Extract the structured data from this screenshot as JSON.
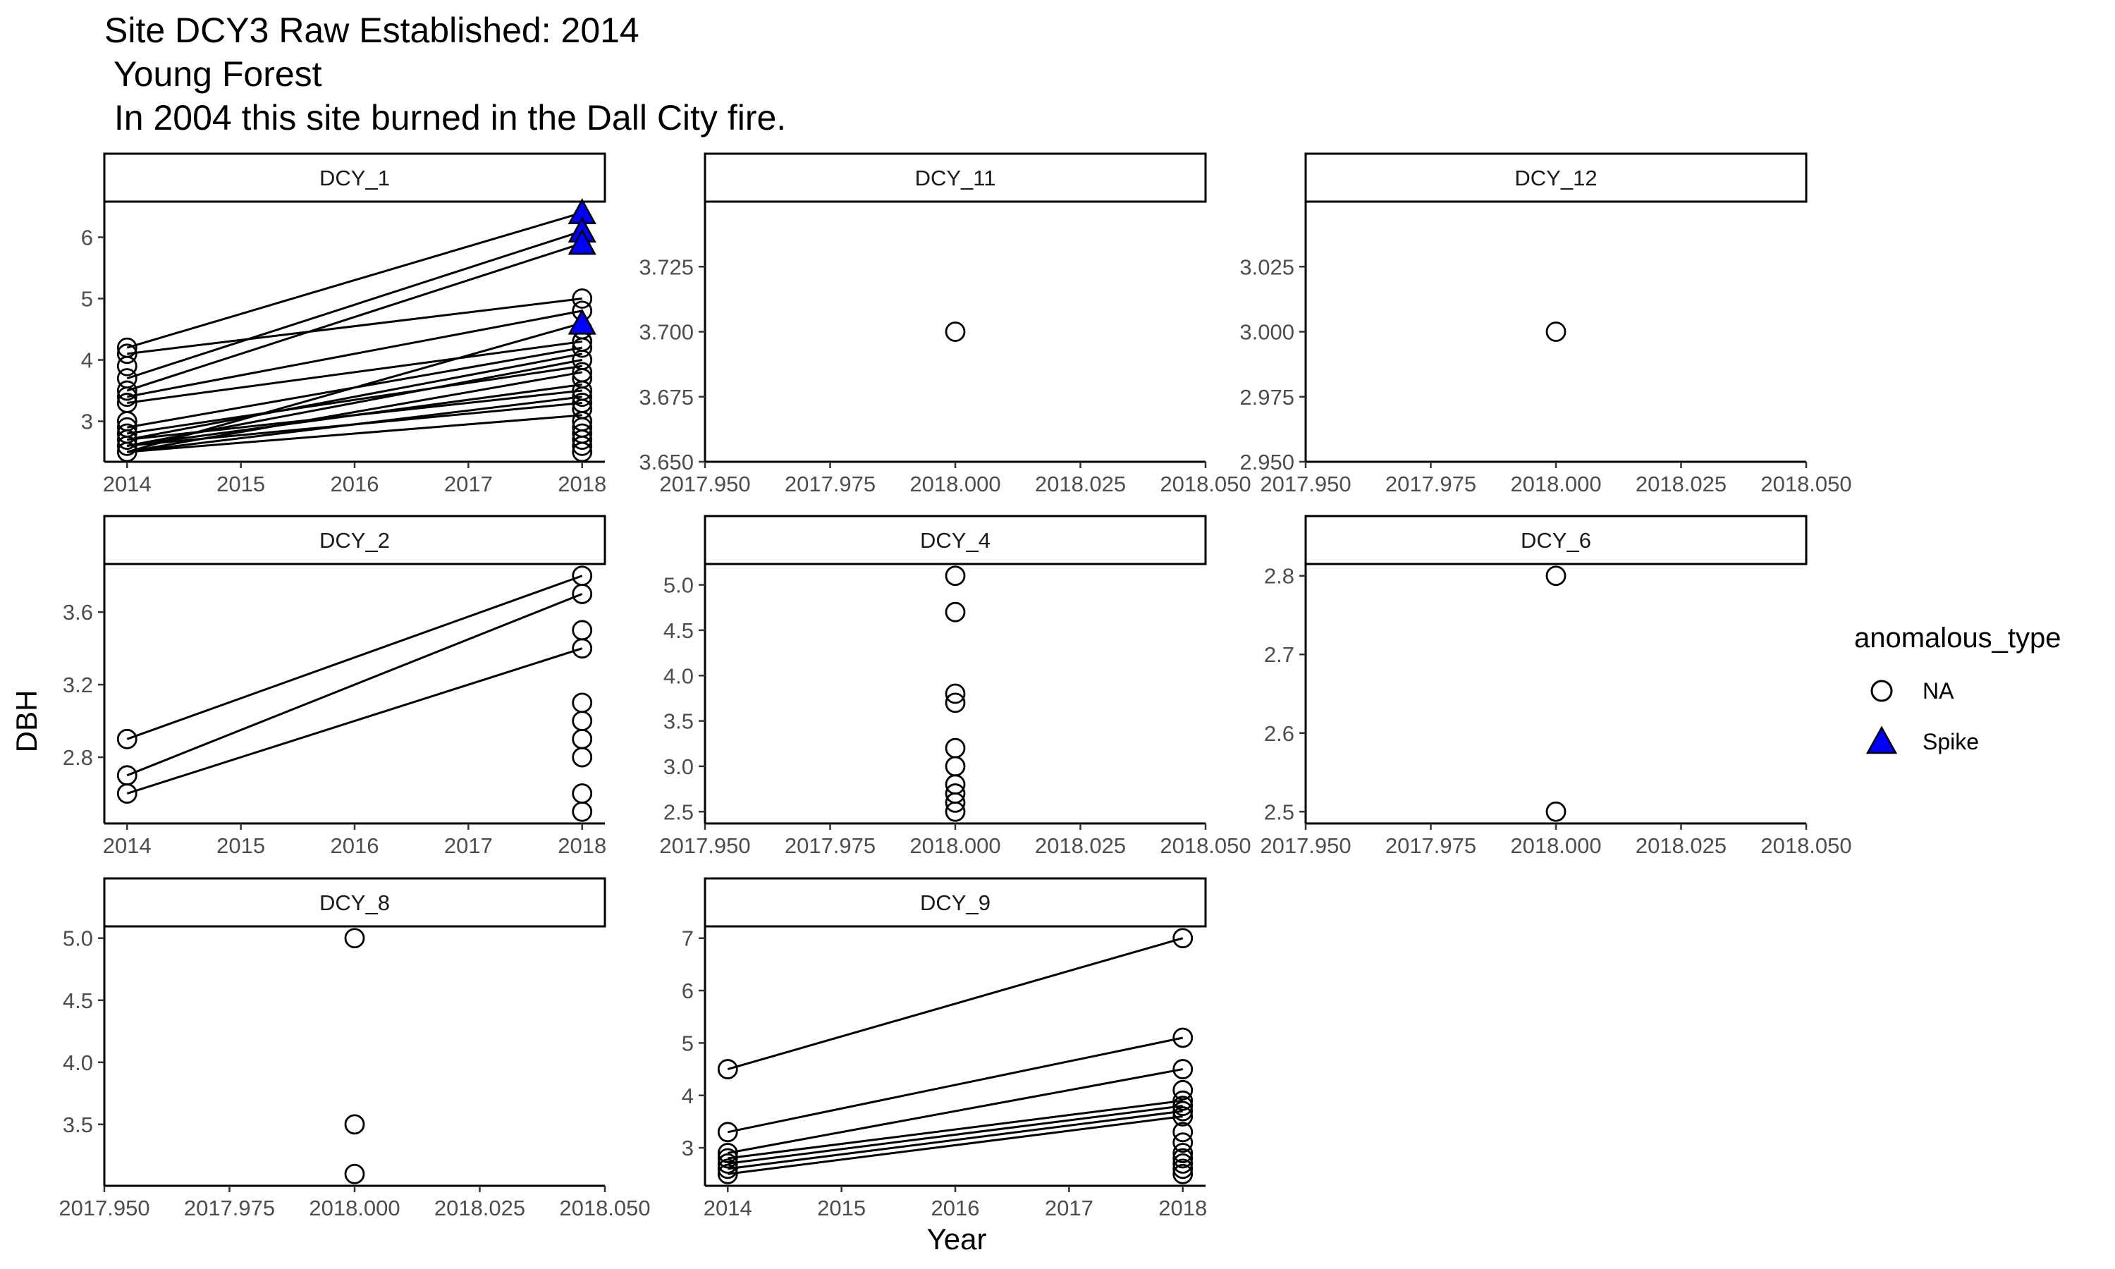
{
  "title_lines": [
    "Site DCY3 Raw Established: 2014",
    " Young Forest",
    " In 2004 this site burned in the Dall City fire."
  ],
  "chart_data": {
    "type": "scatter",
    "xlabel": "Year",
    "ylabel": "DBH",
    "legend": {
      "title": "anomalous_type",
      "position": "right",
      "entries": [
        {
          "label": "NA",
          "marker": "open-circle",
          "color": "#000000"
        },
        {
          "label": "Spike",
          "marker": "filled-triangle",
          "color": "#0000ff"
        }
      ]
    },
    "grid": false,
    "facets": [
      {
        "name": "DCY_1",
        "xlim": [
          2013.8,
          2018.2
        ],
        "xticks": [
          2014,
          2015,
          2016,
          2017,
          2018
        ],
        "ylim": [
          2.34,
          6.58
        ],
        "yticks": [
          3,
          4,
          5,
          6
        ],
        "lines": [
          [
            [
              2014,
              4.2
            ],
            [
              2018,
              6.4
            ]
          ],
          [
            [
              2014,
              3.7
            ],
            [
              2018,
              6.1
            ]
          ],
          [
            [
              2014,
              3.5
            ],
            [
              2018,
              5.9
            ]
          ],
          [
            [
              2014,
              4.1
            ],
            [
              2018,
              5.0
            ]
          ],
          [
            [
              2014,
              3.4
            ],
            [
              2018,
              4.8
            ]
          ],
          [
            [
              2014,
              2.5
            ],
            [
              2018,
              4.6
            ]
          ],
          [
            [
              2014,
              3.3
            ],
            [
              2018,
              4.3
            ]
          ],
          [
            [
              2014,
              2.9
            ],
            [
              2018,
              4.2
            ]
          ],
          [
            [
              2014,
              2.7
            ],
            [
              2018,
              4.1
            ]
          ],
          [
            [
              2014,
              2.6
            ],
            [
              2018,
              4.0
            ]
          ],
          [
            [
              2014,
              2.8
            ],
            [
              2018,
              3.9
            ]
          ],
          [
            [
              2014,
              2.5
            ],
            [
              2018,
              3.8
            ]
          ],
          [
            [
              2014,
              2.6
            ],
            [
              2018,
              3.6
            ]
          ],
          [
            [
              2014,
              2.7
            ],
            [
              2018,
              3.5
            ]
          ],
          [
            [
              2014,
              2.5
            ],
            [
              2018,
              3.4
            ]
          ],
          [
            [
              2014,
              2.6
            ],
            [
              2018,
              3.3
            ]
          ],
          [
            [
              2014,
              2.5
            ],
            [
              2018,
              3.1
            ]
          ]
        ],
        "points": [
          {
            "x": 2014,
            "y": 4.2,
            "type": "NA"
          },
          {
            "x": 2014,
            "y": 4.1,
            "type": "NA"
          },
          {
            "x": 2014,
            "y": 3.9,
            "type": "NA"
          },
          {
            "x": 2014,
            "y": 3.7,
            "type": "NA"
          },
          {
            "x": 2014,
            "y": 3.5,
            "type": "NA"
          },
          {
            "x": 2014,
            "y": 3.4,
            "type": "NA"
          },
          {
            "x": 2014,
            "y": 3.3,
            "type": "NA"
          },
          {
            "x": 2014,
            "y": 3.0,
            "type": "NA"
          },
          {
            "x": 2014,
            "y": 2.9,
            "type": "NA"
          },
          {
            "x": 2014,
            "y": 2.8,
            "type": "NA"
          },
          {
            "x": 2014,
            "y": 2.7,
            "type": "NA"
          },
          {
            "x": 2014,
            "y": 2.6,
            "type": "NA"
          },
          {
            "x": 2014,
            "y": 2.5,
            "type": "NA"
          },
          {
            "x": 2018,
            "y": 5.0,
            "type": "NA"
          },
          {
            "x": 2018,
            "y": 4.8,
            "type": "NA"
          },
          {
            "x": 2018,
            "y": 4.5,
            "type": "NA"
          },
          {
            "x": 2018,
            "y": 4.3,
            "type": "NA"
          },
          {
            "x": 2018,
            "y": 4.2,
            "type": "NA"
          },
          {
            "x": 2018,
            "y": 4.0,
            "type": "NA"
          },
          {
            "x": 2018,
            "y": 3.8,
            "type": "NA"
          },
          {
            "x": 2018,
            "y": 3.7,
            "type": "NA"
          },
          {
            "x": 2018,
            "y": 3.5,
            "type": "NA"
          },
          {
            "x": 2018,
            "y": 3.4,
            "type": "NA"
          },
          {
            "x": 2018,
            "y": 3.3,
            "type": "NA"
          },
          {
            "x": 2018,
            "y": 3.2,
            "type": "NA"
          },
          {
            "x": 2018,
            "y": 3.0,
            "type": "NA"
          },
          {
            "x": 2018,
            "y": 2.9,
            "type": "NA"
          },
          {
            "x": 2018,
            "y": 2.8,
            "type": "NA"
          },
          {
            "x": 2018,
            "y": 2.7,
            "type": "NA"
          },
          {
            "x": 2018,
            "y": 2.6,
            "type": "NA"
          },
          {
            "x": 2018,
            "y": 2.5,
            "type": "NA"
          },
          {
            "x": 2018,
            "y": 6.4,
            "type": "Spike"
          },
          {
            "x": 2018,
            "y": 6.1,
            "type": "Spike"
          },
          {
            "x": 2018,
            "y": 5.9,
            "type": "Spike"
          },
          {
            "x": 2018,
            "y": 4.6,
            "type": "Spike"
          }
        ]
      },
      {
        "name": "DCY_11",
        "xlim": [
          2017.95,
          2018.05
        ],
        "xticks": [
          2017.95,
          2017.975,
          2018.0,
          2018.025,
          2018.05
        ],
        "xtick_labels": [
          "2017.950",
          "2017.975",
          "2018.000",
          "2018.025",
          "2018.050"
        ],
        "ylim": [
          3.65,
          3.75
        ],
        "yticks": [
          3.65,
          3.675,
          3.7,
          3.725
        ],
        "ytick_labels": [
          "3.650",
          "3.675",
          "3.700",
          "3.725"
        ],
        "lines": [],
        "points": [
          {
            "x": 2018.0,
            "y": 3.7,
            "type": "NA"
          }
        ]
      },
      {
        "name": "DCY_12",
        "xlim": [
          2017.95,
          2018.05
        ],
        "xticks": [
          2017.95,
          2017.975,
          2018.0,
          2018.025,
          2018.05
        ],
        "xtick_labels": [
          "2017.950",
          "2017.975",
          "2018.000",
          "2018.025",
          "2018.050"
        ],
        "ylim": [
          2.95,
          3.05
        ],
        "yticks": [
          2.95,
          2.975,
          3.0,
          3.025
        ],
        "ytick_labels": [
          "2.950",
          "2.975",
          "3.000",
          "3.025"
        ],
        "lines": [],
        "points": [
          {
            "x": 2018.0,
            "y": 3.0,
            "type": "NA"
          }
        ]
      },
      {
        "name": "DCY_2",
        "xlim": [
          2013.8,
          2018.2
        ],
        "xticks": [
          2014,
          2015,
          2016,
          2017,
          2018
        ],
        "ylim": [
          2.435,
          3.865
        ],
        "yticks": [
          2.8,
          3.2,
          3.6
        ],
        "lines": [
          [
            [
              2014,
              2.9
            ],
            [
              2018,
              3.8
            ]
          ],
          [
            [
              2014,
              2.7
            ],
            [
              2018,
              3.7
            ]
          ],
          [
            [
              2014,
              2.6
            ],
            [
              2018,
              3.4
            ]
          ]
        ],
        "points": [
          {
            "x": 2014,
            "y": 2.9,
            "type": "NA"
          },
          {
            "x": 2014,
            "y": 2.7,
            "type": "NA"
          },
          {
            "x": 2014,
            "y": 2.6,
            "type": "NA"
          },
          {
            "x": 2018,
            "y": 3.8,
            "type": "NA"
          },
          {
            "x": 2018,
            "y": 3.7,
            "type": "NA"
          },
          {
            "x": 2018,
            "y": 3.5,
            "type": "NA"
          },
          {
            "x": 2018,
            "y": 3.4,
            "type": "NA"
          },
          {
            "x": 2018,
            "y": 3.1,
            "type": "NA"
          },
          {
            "x": 2018,
            "y": 3.0,
            "type": "NA"
          },
          {
            "x": 2018,
            "y": 2.9,
            "type": "NA"
          },
          {
            "x": 2018,
            "y": 2.8,
            "type": "NA"
          },
          {
            "x": 2018,
            "y": 2.6,
            "type": "NA"
          },
          {
            "x": 2018,
            "y": 2.5,
            "type": "NA"
          }
        ]
      },
      {
        "name": "DCY_4",
        "xlim": [
          2017.95,
          2018.05
        ],
        "xticks": [
          2017.95,
          2017.975,
          2018.0,
          2018.025,
          2018.05
        ],
        "xtick_labels": [
          "2017.950",
          "2017.975",
          "2018.000",
          "2018.025",
          "2018.050"
        ],
        "ylim": [
          2.37,
          5.23
        ],
        "yticks": [
          2.5,
          3.0,
          3.5,
          4.0,
          4.5,
          5.0
        ],
        "ytick_labels": [
          "2.5",
          "3.0",
          "3.5",
          "4.0",
          "4.5",
          "5.0"
        ],
        "lines": [],
        "points": [
          {
            "x": 2018.0,
            "y": 5.1,
            "type": "NA"
          },
          {
            "x": 2018.0,
            "y": 4.7,
            "type": "NA"
          },
          {
            "x": 2018.0,
            "y": 3.8,
            "type": "NA"
          },
          {
            "x": 2018.0,
            "y": 3.7,
            "type": "NA"
          },
          {
            "x": 2018.0,
            "y": 3.2,
            "type": "NA"
          },
          {
            "x": 2018.0,
            "y": 3.0,
            "type": "NA"
          },
          {
            "x": 2018.0,
            "y": 2.8,
            "type": "NA"
          },
          {
            "x": 2018.0,
            "y": 2.7,
            "type": "NA"
          },
          {
            "x": 2018.0,
            "y": 2.6,
            "type": "NA"
          },
          {
            "x": 2018.0,
            "y": 2.5,
            "type": "NA"
          }
        ]
      },
      {
        "name": "DCY_6",
        "xlim": [
          2017.95,
          2018.05
        ],
        "xticks": [
          2017.95,
          2017.975,
          2018.0,
          2018.025,
          2018.05
        ],
        "xtick_labels": [
          "2017.950",
          "2017.975",
          "2018.000",
          "2018.025",
          "2018.050"
        ],
        "ylim": [
          2.485,
          2.815
        ],
        "yticks": [
          2.5,
          2.6,
          2.7,
          2.8
        ],
        "ytick_labels": [
          "2.5",
          "2.6",
          "2.7",
          "2.8"
        ],
        "lines": [],
        "points": [
          {
            "x": 2018.0,
            "y": 2.8,
            "type": "NA"
          },
          {
            "x": 2018.0,
            "y": 2.5,
            "type": "NA"
          }
        ]
      },
      {
        "name": "DCY_8",
        "xlim": [
          2017.95,
          2018.05
        ],
        "xticks": [
          2017.95,
          2017.975,
          2018.0,
          2018.025,
          2018.05
        ],
        "xtick_labels": [
          "2017.950",
          "2017.975",
          "2018.000",
          "2018.025",
          "2018.050"
        ],
        "ylim": [
          3.005,
          5.095
        ],
        "yticks": [
          3.5,
          4.0,
          4.5,
          5.0
        ],
        "ytick_labels": [
          "3.5",
          "4.0",
          "4.5",
          "5.0"
        ],
        "lines": [],
        "points": [
          {
            "x": 2018.0,
            "y": 5.0,
            "type": "NA"
          },
          {
            "x": 2018.0,
            "y": 3.5,
            "type": "NA"
          },
          {
            "x": 2018.0,
            "y": 3.1,
            "type": "NA"
          }
        ]
      },
      {
        "name": "DCY_9",
        "xlim": [
          2013.8,
          2018.2
        ],
        "xticks": [
          2014,
          2015,
          2016,
          2017,
          2018
        ],
        "ylim": [
          2.275,
          7.225
        ],
        "yticks": [
          3,
          4,
          5,
          6,
          7
        ],
        "lines": [
          [
            [
              2014,
              4.5
            ],
            [
              2018,
              7.0
            ]
          ],
          [
            [
              2014,
              3.3
            ],
            [
              2018,
              5.1
            ]
          ],
          [
            [
              2014,
              2.9
            ],
            [
              2018,
              4.5
            ]
          ],
          [
            [
              2014,
              2.8
            ],
            [
              2018,
              3.9
            ]
          ],
          [
            [
              2014,
              2.7
            ],
            [
              2018,
              3.8
            ]
          ],
          [
            [
              2014,
              2.6
            ],
            [
              2018,
              3.7
            ]
          ],
          [
            [
              2014,
              2.5
            ],
            [
              2018,
              3.6
            ]
          ]
        ],
        "points": [
          {
            "x": 2014,
            "y": 4.5,
            "type": "NA"
          },
          {
            "x": 2014,
            "y": 3.3,
            "type": "NA"
          },
          {
            "x": 2014,
            "y": 2.9,
            "type": "NA"
          },
          {
            "x": 2014,
            "y": 2.8,
            "type": "NA"
          },
          {
            "x": 2014,
            "y": 2.7,
            "type": "NA"
          },
          {
            "x": 2014,
            "y": 2.6,
            "type": "NA"
          },
          {
            "x": 2014,
            "y": 2.5,
            "type": "NA"
          },
          {
            "x": 2018,
            "y": 7.0,
            "type": "NA"
          },
          {
            "x": 2018,
            "y": 5.1,
            "type": "NA"
          },
          {
            "x": 2018,
            "y": 4.5,
            "type": "NA"
          },
          {
            "x": 2018,
            "y": 4.1,
            "type": "NA"
          },
          {
            "x": 2018,
            "y": 3.9,
            "type": "NA"
          },
          {
            "x": 2018,
            "y": 3.8,
            "type": "NA"
          },
          {
            "x": 2018,
            "y": 3.7,
            "type": "NA"
          },
          {
            "x": 2018,
            "y": 3.6,
            "type": "NA"
          },
          {
            "x": 2018,
            "y": 3.3,
            "type": "NA"
          },
          {
            "x": 2018,
            "y": 3.1,
            "type": "NA"
          },
          {
            "x": 2018,
            "y": 2.9,
            "type": "NA"
          },
          {
            "x": 2018,
            "y": 2.8,
            "type": "NA"
          },
          {
            "x": 2018,
            "y": 2.7,
            "type": "NA"
          },
          {
            "x": 2018,
            "y": 2.6,
            "type": "NA"
          },
          {
            "x": 2018,
            "y": 2.5,
            "type": "NA"
          }
        ]
      }
    ]
  }
}
